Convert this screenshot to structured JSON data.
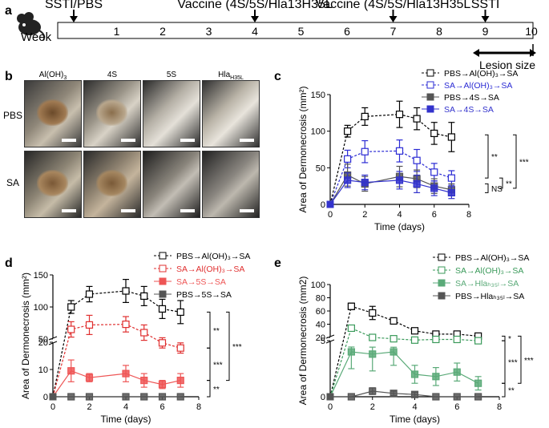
{
  "panel_a": {
    "label": "a",
    "week_label": "Week",
    "weeks": [
      "1",
      "2",
      "3",
      "4",
      "5",
      "6",
      "7",
      "8",
      "9",
      "10"
    ],
    "events": [
      {
        "week": 0,
        "text": "SSTI/PBS"
      },
      {
        "week": 4,
        "text": "Vaccine (4S/5S/Hla",
        "sub": "H35L",
        "text_end": ")"
      },
      {
        "week": 7,
        "text": "Vaccine (4S/5S/Hla",
        "sub": "H35L",
        "text_end": ")"
      },
      {
        "week": 9,
        "text": "SSTI"
      }
    ],
    "lesion_label": "Lesion size"
  },
  "panel_b": {
    "label": "b",
    "columns": [
      {
        "text": "Al(OH)",
        "sub": "3"
      },
      {
        "text": "4S",
        "sub": ""
      },
      {
        "text": "5S",
        "sub": ""
      },
      {
        "text": "Hla",
        "sub": "H35L"
      }
    ],
    "rows": [
      "PBS",
      "SA"
    ]
  },
  "chart_data": [
    {
      "panel": "c",
      "type": "line",
      "xlabel": "Time (days)",
      "ylabel": "Area of Dermonecrosis (mm²)",
      "xlim": [
        0,
        8
      ],
      "ylim": [
        0,
        150
      ],
      "xticks": [
        "0",
        "2",
        "4",
        "6",
        "8"
      ],
      "yticks": [
        "0",
        "50",
        "100",
        "150"
      ],
      "x": [
        1,
        2,
        4,
        5,
        6,
        7
      ],
      "series": [
        {
          "name": "PBS→Al(OH)₃→SA",
          "color": "#000000",
          "filled": false,
          "dashed": true,
          "values": [
            100,
            120,
            123,
            117,
            97,
            92
          ],
          "err": [
            8,
            12,
            18,
            15,
            15,
            20
          ]
        },
        {
          "name": "SA→Al(OH)₃→SA",
          "color": "#2b2bd4",
          "filled": false,
          "dashed": true,
          "values": [
            62,
            72,
            73,
            60,
            44,
            36
          ],
          "err": [
            12,
            15,
            15,
            15,
            12,
            10
          ]
        },
        {
          "name": "PBS→4S→SA",
          "color": "#555555",
          "filled": true,
          "dashed": false,
          "values": [
            40,
            28,
            38,
            35,
            25,
            20
          ],
          "err": [
            15,
            10,
            14,
            12,
            10,
            8
          ]
        },
        {
          "name": "SA→4S→SA",
          "color": "#3333cc",
          "filled": true,
          "dashed": false,
          "values": [
            33,
            30,
            33,
            28,
            22,
            16
          ],
          "err": [
            10,
            10,
            12,
            12,
            10,
            8
          ]
        }
      ],
      "significance": [
        "**",
        "***",
        "**",
        "NS"
      ]
    },
    {
      "panel": "d",
      "type": "line",
      "xlabel": "Time (days)",
      "ylabel": "Area of Dermonecrosis (mm²)",
      "xlim": [
        0,
        8
      ],
      "ylim": [
        0,
        150
      ],
      "xticks": [
        "0",
        "2",
        "4",
        "6",
        "8"
      ],
      "yticks": [
        "0",
        "10",
        "20",
        "50",
        "100",
        "150"
      ],
      "x": [
        1,
        2,
        4,
        5,
        6,
        7
      ],
      "series": [
        {
          "name": "PBS→Al(OH)₃→SA",
          "color": "#000000",
          "filled": false,
          "dashed": true,
          "values": [
            100,
            120,
            125,
            117,
            97,
            92
          ],
          "err": [
            10,
            12,
            18,
            15,
            15,
            18
          ]
        },
        {
          "name": "SA→Al(OH)₃→SA",
          "color": "#e03030",
          "filled": false,
          "dashed": true,
          "values": [
            65,
            72,
            73,
            60,
            44,
            36
          ],
          "err": [
            12,
            15,
            12,
            12,
            8,
            8
          ]
        },
        {
          "name": "SA→5S→SA",
          "color": "#ee5555",
          "filled": true,
          "dashed": false,
          "values": [
            9.5,
            7,
            8.5,
            6,
            4.5,
            6
          ],
          "err": [
            4,
            1.5,
            3,
            2.5,
            1.5,
            2.5
          ]
        },
        {
          "name": "PBS→5S→SA",
          "color": "#555555",
          "filled": true,
          "dashed": false,
          "values": [
            0,
            0,
            0,
            0,
            0,
            0
          ],
          "err": [
            0,
            0,
            0,
            0,
            0,
            0
          ]
        }
      ],
      "significance": [
        "**",
        "***",
        "***",
        "**"
      ]
    },
    {
      "panel": "e",
      "type": "line",
      "xlabel": "Time (days)",
      "ylabel": "Area of Dermonecrosis (mm2)",
      "xlim": [
        0,
        8
      ],
      "ylim": [
        0,
        100
      ],
      "xticks": [
        "0",
        "2",
        "4",
        "6",
        "8"
      ],
      "yticks": [
        "0",
        "5",
        "20",
        "40",
        "60",
        "80",
        "100"
      ],
      "x": [
        1,
        2,
        3,
        4,
        5,
        6,
        7
      ],
      "series": [
        {
          "name": "PBS→Al(OH)₃→SA",
          "color": "#000000",
          "filled": false,
          "dashed": true,
          "values": [
            67,
            57,
            45,
            30,
            25,
            25,
            22
          ],
          "err": [
            5,
            10,
            4,
            4,
            4,
            4,
            4
          ]
        },
        {
          "name": "SA→Al(OH)₃→SA",
          "color": "#3a9a5a",
          "filled": false,
          "dashed": true,
          "values": [
            34,
            20,
            18,
            16,
            17,
            17,
            15
          ],
          "err": [
            4,
            2,
            2,
            2,
            2,
            2,
            2
          ]
        },
        {
          "name": "SA→Hlaₕ₃₅ₗ→SA",
          "color": "#5aaa78",
          "filled": true,
          "dashed": false,
          "values": [
            4.0,
            3.8,
            4.0,
            2.0,
            1.8,
            2.2,
            1.2
          ],
          "err": [
            1.5,
            1.5,
            1.2,
            0.8,
            0.8,
            0.8,
            0.6
          ]
        },
        {
          "name": "PBS→Hlaₕ₃₅ₗ→SA",
          "color": "#555555",
          "filled": true,
          "dashed": false,
          "values": [
            0,
            0.5,
            0.3,
            0.2,
            0,
            0,
            0
          ],
          "err": [
            0,
            0.3,
            0.2,
            0.2,
            0,
            0,
            0
          ]
        }
      ],
      "significance": [
        "*",
        "***",
        "***",
        "**"
      ]
    }
  ]
}
